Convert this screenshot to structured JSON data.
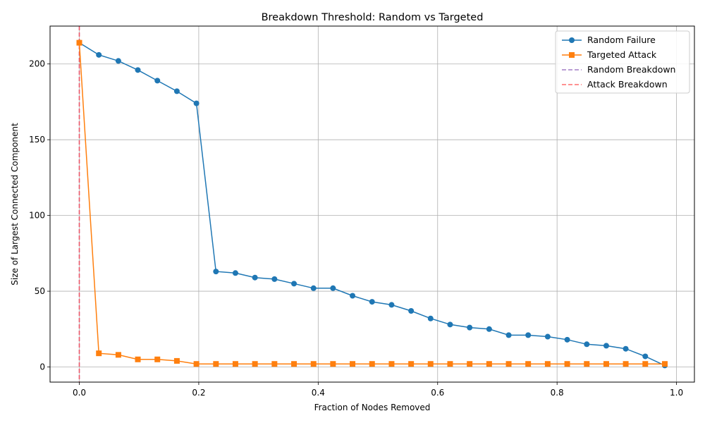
{
  "chart_data": {
    "type": "line",
    "title": "Breakdown Threshold: Random vs Targeted",
    "xlabel": "Fraction of Nodes Removed",
    "ylabel": "Size of Largest Connected Component",
    "xlim": [
      -0.049,
      1.03
    ],
    "ylim": [
      -10,
      225
    ],
    "xticks": [
      0.0,
      0.2,
      0.4,
      0.6,
      0.8,
      1.0
    ],
    "xtick_labels": [
      "0.0",
      "0.2",
      "0.4",
      "0.6",
      "0.8",
      "1.0"
    ],
    "yticks": [
      0,
      50,
      100,
      150,
      200
    ],
    "ytick_labels": [
      "0",
      "50",
      "100",
      "150",
      "200"
    ],
    "grid": true,
    "legend_position": "top-right",
    "x": [
      0.0,
      0.0327,
      0.0654,
      0.098,
      0.1307,
      0.1634,
      0.1961,
      0.2288,
      0.2614,
      0.2941,
      0.3268,
      0.3595,
      0.3922,
      0.4248,
      0.4575,
      0.4902,
      0.5229,
      0.5556,
      0.5882,
      0.6209,
      0.6536,
      0.6863,
      0.719,
      0.7516,
      0.7843,
      0.817,
      0.8497,
      0.8824,
      0.915,
      0.9477,
      0.9804
    ],
    "series": [
      {
        "name": "Random Failure",
        "color": "#1f77b4",
        "marker": "circle",
        "values": [
          214,
          206,
          202,
          196,
          189,
          182,
          174,
          63,
          62,
          59,
          58,
          55,
          52,
          52,
          47,
          43,
          41,
          37,
          32,
          28,
          26,
          25,
          21,
          21,
          20,
          18,
          15,
          14,
          12,
          7,
          1
        ]
      },
      {
        "name": "Targeted Attack",
        "color": "#ff7f0e",
        "marker": "square",
        "values": [
          214,
          9,
          8,
          5,
          5,
          4,
          2,
          2,
          2,
          2,
          2,
          2,
          2,
          2,
          2,
          2,
          2,
          2,
          2,
          2,
          2,
          2,
          2,
          2,
          2,
          2,
          2,
          2,
          2,
          2,
          2
        ]
      }
    ],
    "vlines": [
      {
        "name": "Random Breakdown",
        "x": 0.0,
        "color": "#9467bd",
        "style": "dashed"
      },
      {
        "name": "Attack Breakdown",
        "x": 0.0,
        "color": "#ff5555",
        "style": "dashed"
      }
    ]
  }
}
